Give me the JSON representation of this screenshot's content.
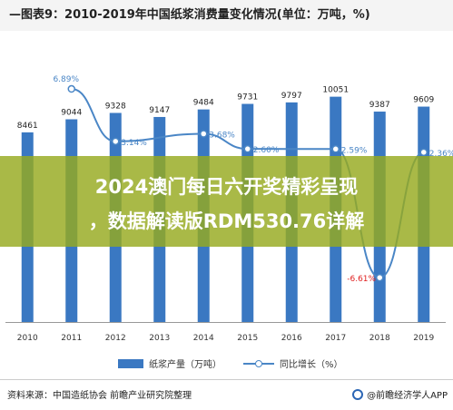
{
  "title": "—图表9：2010-2019年中国纸浆消费量变化情况(单位：万吨，%)",
  "banner": {
    "line1": "2024澳门每日六开奖精彩呈现",
    "line2": "，数据解读版RDM530.76详解"
  },
  "legend": {
    "bar_label": "纸浆产量（万吨）",
    "line_label": "同比增长（%）"
  },
  "footer": {
    "source": "资料来源：中国造纸协会 前瞻产业研究院整理",
    "brand": "@前瞻经济学人APP"
  },
  "colors": {
    "bar": "#3a78c2",
    "line": "#4a86c6",
    "negative_label": "#e02020",
    "banner": "#96aa1e"
  },
  "chart_data": {
    "type": "bar",
    "categories": [
      "2010",
      "2011",
      "2012",
      "2013",
      "2014",
      "2015",
      "2016",
      "2017",
      "2018",
      "2019"
    ],
    "series": [
      {
        "name": "纸浆产量（万吨）",
        "type": "bar",
        "values": [
          8461,
          9044,
          9328,
          9147,
          9484,
          9731,
          9797,
          10051,
          9387,
          9609
        ]
      },
      {
        "name": "同比增长（%）",
        "type": "line",
        "values": [
          null,
          6.89,
          3.14,
          null,
          3.68,
          2.6,
          null,
          2.59,
          -6.61,
          2.36
        ]
      }
    ],
    "bar_labels": [
      "8461",
      "9044",
      "9328",
      "9147",
      "9484",
      "9731",
      "9797",
      "10051",
      "9387",
      "9609"
    ],
    "line_labels": [
      "",
      "6.89%",
      "3.14%",
      "",
      "3.68%",
      "2.60%",
      "",
      "2.59%",
      "-6.61%",
      "2.36%"
    ],
    "grid": false,
    "legend_position": "bottom"
  }
}
